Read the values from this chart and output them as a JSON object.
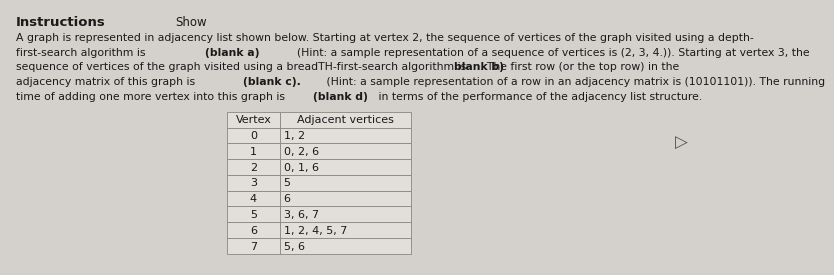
{
  "title": "Instructions",
  "title_show": "Show",
  "paragraph_lines": [
    [
      {
        "text": "A graph is represented in adjacency list shown below. Starting at vertex 2, the sequence of vertices of the graph visited using a depth-",
        "bold": false
      }
    ],
    [
      {
        "text": "first-search algorithm is ",
        "bold": false
      },
      {
        "text": "(blank a)",
        "bold": true
      },
      {
        "text": "  (Hint: a sample representation of a sequence of vertices is (2, 3, 4.)). Starting at vertex 3, the",
        "bold": false
      }
    ],
    [
      {
        "text": "sequence of vertices of the graph visited using a breadTH-first-search algorithm is ",
        "bold": false
      },
      {
        "text": "blank b)",
        "bold": true
      },
      {
        "text": ". The first row (or the top row) in the",
        "bold": false
      }
    ],
    [
      {
        "text": "adjacency matrix of this graph is ",
        "bold": false
      },
      {
        "text": "(blank c).",
        "bold": true
      },
      {
        "text": " (Hint: a sample representation of a row in an adjacency matrix is (10101101)). The running",
        "bold": false
      }
    ],
    [
      {
        "text": "time of adding one more vertex into this graph is ",
        "bold": false
      },
      {
        "text": "(blank d)",
        "bold": true
      },
      {
        "text": " in terms of the performance of the adjacency list structure.",
        "bold": false
      }
    ]
  ],
  "table_header": [
    "Vertex",
    "Adjacent vertices"
  ],
  "table_rows": [
    [
      "0",
      "1, 2"
    ],
    [
      "1",
      "0, 2, 6"
    ],
    [
      "2",
      "0, 1, 6"
    ],
    [
      "3",
      "5"
    ],
    [
      "4",
      "6"
    ],
    [
      "5",
      "3, 6, 7"
    ],
    [
      "6",
      "1, 2, 4, 5, 7"
    ],
    [
      "7",
      "5, 6"
    ]
  ],
  "bg_color": "#d4d0cb",
  "table_bg": "#e2dfda",
  "table_header_bg": "#e2dfda",
  "table_line_color": "#888880",
  "text_color": "#1a1a1a",
  "font_size_title": 9.5,
  "font_size_show": 8.5,
  "font_size_body": 7.8,
  "font_size_table": 8.0,
  "arrow_char": "▷"
}
